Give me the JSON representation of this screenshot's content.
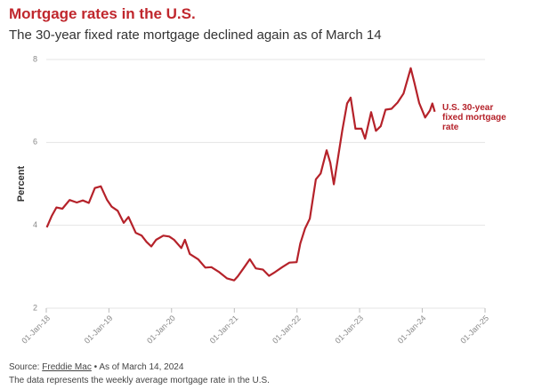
{
  "chart_data": {
    "type": "line",
    "title": "Mortgage rates in the U.S.",
    "subtitle": "The 30-year fixed rate mortgage declined again as of March 14",
    "y_label": "Percent",
    "source_label": "Source:",
    "source": "Freddie Mac",
    "source_date": "• As of March 14, 2024",
    "note": "The data represents the weekly average mortgage rate in the U.S.",
    "xlim": [
      "2018-01-01",
      "2025-01-01"
    ],
    "xticks": [
      {
        "value": "2018-01-01",
        "label": "01-Jan-18"
      },
      {
        "value": "2019-01-01",
        "label": "01-Jan-19"
      },
      {
        "value": "2020-01-01",
        "label": "01-Jan-20"
      },
      {
        "value": "2021-01-01",
        "label": "01-Jan-21"
      },
      {
        "value": "2022-01-01",
        "label": "01-Jan-22"
      },
      {
        "value": "2023-01-01",
        "label": "01-Jan-23"
      },
      {
        "value": "2024-01-01",
        "label": "01-Jan-24"
      },
      {
        "value": "2025-01-01",
        "label": "01-Jan-25"
      }
    ],
    "ylim": [
      2,
      8
    ],
    "yticks": [
      2,
      4,
      6,
      8
    ],
    "grid": true,
    "x": [
      "2018-01-04",
      "2018-02-01",
      "2018-03-01",
      "2018-04-05",
      "2018-05-17",
      "2018-06-28",
      "2018-08-02",
      "2018-09-06",
      "2018-10-11",
      "2018-11-15",
      "2018-12-20",
      "2019-01-17",
      "2019-02-21",
      "2019-03-28",
      "2019-04-25",
      "2019-06-06",
      "2019-07-11",
      "2019-08-08",
      "2019-09-05",
      "2019-10-03",
      "2019-11-14",
      "2019-12-19",
      "2020-01-16",
      "2020-02-27",
      "2020-03-19",
      "2020-04-16",
      "2020-06-04",
      "2020-07-16",
      "2020-08-20",
      "2020-10-01",
      "2020-11-19",
      "2020-12-31",
      "2021-01-21",
      "2021-02-25",
      "2021-04-01",
      "2021-05-06",
      "2021-06-17",
      "2021-07-22",
      "2021-08-26",
      "2021-10-07",
      "2021-11-18",
      "2021-12-30",
      "2022-01-20",
      "2022-02-17",
      "2022-03-17",
      "2022-04-21",
      "2022-05-19",
      "2022-06-23",
      "2022-07-14",
      "2022-08-04",
      "2022-08-25",
      "2022-09-22",
      "2022-10-20",
      "2022-11-10",
      "2022-12-08",
      "2023-01-12",
      "2023-02-02",
      "2023-03-09",
      "2023-04-06",
      "2023-05-04",
      "2023-06-01",
      "2023-07-06",
      "2023-08-10",
      "2023-09-14",
      "2023-10-26",
      "2023-11-16",
      "2023-12-14",
      "2024-01-18",
      "2024-02-15",
      "2024-02-29",
      "2024-03-14"
    ],
    "series": [
      {
        "name": "U.S. 30-year fixed mortgage rate",
        "color": "#b5222a",
        "values": [
          3.95,
          4.22,
          4.43,
          4.4,
          4.61,
          4.55,
          4.6,
          4.54,
          4.9,
          4.94,
          4.62,
          4.45,
          4.35,
          4.06,
          4.2,
          3.82,
          3.75,
          3.6,
          3.49,
          3.65,
          3.75,
          3.73,
          3.65,
          3.45,
          3.65,
          3.31,
          3.18,
          2.98,
          2.99,
          2.88,
          2.72,
          2.67,
          2.77,
          2.97,
          3.18,
          2.96,
          2.93,
          2.78,
          2.87,
          2.99,
          3.1,
          3.11,
          3.56,
          3.92,
          4.16,
          5.11,
          5.25,
          5.81,
          5.51,
          4.99,
          5.55,
          6.29,
          6.94,
          7.08,
          6.33,
          6.33,
          6.09,
          6.73,
          6.28,
          6.39,
          6.79,
          6.81,
          6.96,
          7.18,
          7.79,
          7.44,
          6.95,
          6.6,
          6.77,
          6.94,
          6.74
        ]
      }
    ]
  }
}
